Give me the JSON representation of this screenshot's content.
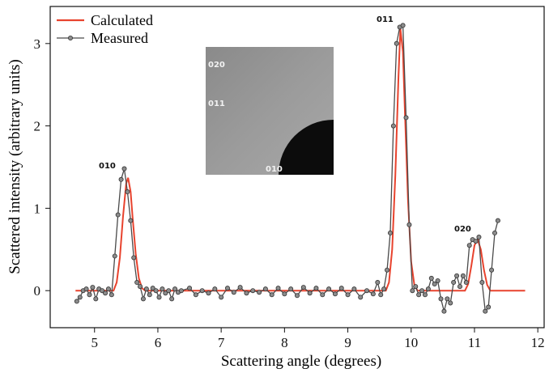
{
  "chart_data": {
    "type": "line",
    "xlabel": "Scattering angle (degrees)",
    "ylabel": "Scattered intensity (arbitrary units)",
    "xlim": [
      4.3,
      12.1
    ],
    "xticks": [
      5,
      6,
      7,
      8,
      9,
      10,
      11,
      12
    ],
    "ylim": [
      -0.45,
      3.45
    ],
    "yticks": [
      0,
      1,
      2,
      3
    ],
    "legend": "upper left",
    "annotations": [
      "010",
      "011",
      "020"
    ],
    "inset_labels": [
      "020",
      "011",
      "010"
    ],
    "series": [
      {
        "name": "Calculated",
        "color": "#e8432e",
        "marker": false,
        "x": [
          4.7,
          5.3,
          5.35,
          5.4,
          5.45,
          5.5,
          5.53,
          5.57,
          5.6,
          5.65,
          5.7,
          5.75,
          5.8,
          9.6,
          9.65,
          9.7,
          9.75,
          9.8,
          9.83,
          9.87,
          9.9,
          9.95,
          10.0,
          10.05,
          10.1,
          10.85,
          10.9,
          10.95,
          11.0,
          11.05,
          11.1,
          11.15,
          11.2,
          11.25,
          11.8
        ],
        "values": [
          0,
          0,
          0.1,
          0.4,
          0.9,
          1.3,
          1.37,
          1.2,
          0.9,
          0.45,
          0.15,
          0.03,
          0,
          0,
          0.1,
          0.5,
          1.4,
          2.6,
          3.18,
          2.9,
          2.2,
          1.1,
          0.35,
          0.07,
          0,
          0,
          0.08,
          0.3,
          0.55,
          0.62,
          0.5,
          0.25,
          0.07,
          0,
          0
        ]
      },
      {
        "name": "Measured",
        "color": "#4a4a4a",
        "marker": true,
        "x": [
          4.72,
          4.77,
          4.82,
          4.87,
          4.92,
          4.97,
          5.02,
          5.07,
          5.12,
          5.17,
          5.22,
          5.27,
          5.32,
          5.37,
          5.42,
          5.47,
          5.52,
          5.57,
          5.62,
          5.67,
          5.72,
          5.77,
          5.82,
          5.87,
          5.92,
          5.97,
          6.02,
          6.07,
          6.12,
          6.17,
          6.22,
          6.27,
          6.32,
          6.37,
          6.5,
          6.6,
          6.7,
          6.8,
          6.9,
          7.0,
          7.1,
          7.2,
          7.3,
          7.4,
          7.5,
          7.6,
          7.7,
          7.8,
          7.9,
          8.0,
          8.1,
          8.2,
          8.3,
          8.4,
          8.5,
          8.6,
          8.7,
          8.8,
          8.9,
          9.0,
          9.1,
          9.2,
          9.3,
          9.4,
          9.47,
          9.52,
          9.57,
          9.62,
          9.67,
          9.72,
          9.77,
          9.82,
          9.87,
          9.92,
          9.97,
          10.02,
          10.07,
          10.12,
          10.17,
          10.22,
          10.27,
          10.32,
          10.37,
          10.42,
          10.47,
          10.52,
          10.57,
          10.62,
          10.67,
          10.72,
          10.77,
          10.82,
          10.87,
          10.92,
          10.97,
          11.02,
          11.07,
          11.12,
          11.17,
          11.22,
          11.27,
          11.32,
          11.37
        ],
        "values": [
          -0.13,
          -0.08,
          0.0,
          0.02,
          -0.05,
          0.04,
          -0.1,
          0.02,
          0.0,
          -0.03,
          0.02,
          -0.05,
          0.42,
          0.92,
          1.35,
          1.48,
          1.2,
          0.85,
          0.4,
          0.1,
          0.05,
          -0.1,
          0.02,
          -0.05,
          0.03,
          0.0,
          -0.08,
          0.02,
          -0.03,
          0.0,
          -0.1,
          0.02,
          -0.02,
          0.0,
          0.03,
          -0.05,
          0.0,
          -0.03,
          0.02,
          -0.08,
          0.03,
          -0.02,
          0.04,
          -0.03,
          0.0,
          -0.02,
          0.02,
          -0.05,
          0.03,
          -0.04,
          0.02,
          -0.06,
          0.04,
          -0.03,
          0.03,
          -0.05,
          0.02,
          -0.04,
          0.03,
          -0.05,
          0.02,
          -0.08,
          0.0,
          -0.04,
          0.1,
          -0.05,
          0.02,
          0.25,
          0.7,
          2.0,
          3.0,
          3.2,
          3.22,
          2.1,
          0.8,
          0.0,
          0.05,
          -0.05,
          0.0,
          -0.05,
          0.02,
          0.15,
          0.08,
          0.12,
          -0.1,
          -0.25,
          -0.1,
          -0.15,
          0.1,
          0.18,
          0.05,
          0.18,
          0.1,
          0.55,
          0.62,
          0.6,
          0.65,
          0.1,
          -0.25,
          -0.2,
          0.25,
          0.7,
          0.85
        ]
      }
    ]
  }
}
